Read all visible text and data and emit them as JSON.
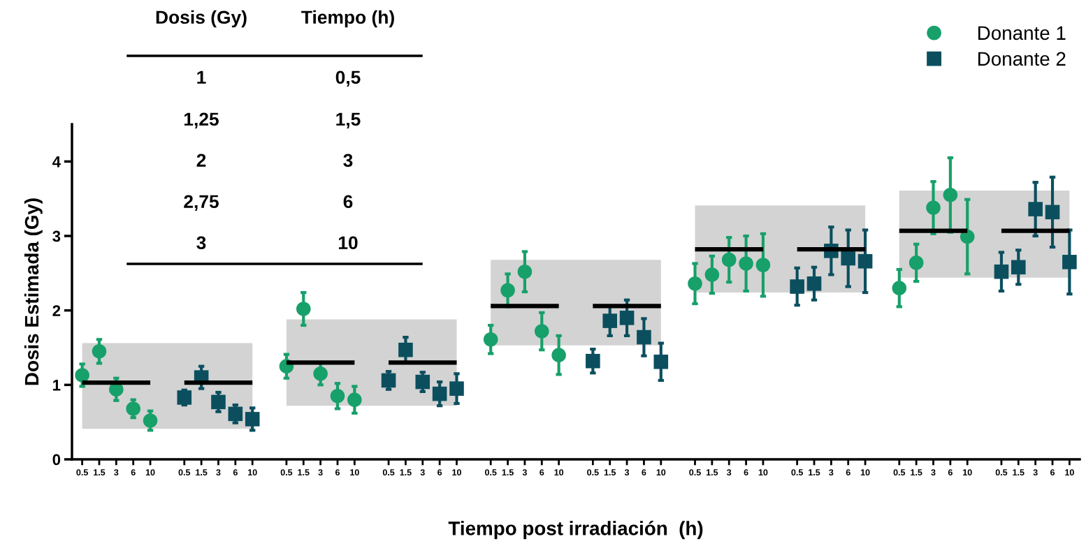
{
  "chart_data": {
    "type": "scatter",
    "xlabel": "Tiempo post irradiación  (h)",
    "ylabel": "Dosis Estimada (Gy)",
    "categories": [
      "0.5",
      "1.5",
      "3",
      "6",
      "10",
      null,
      "0.5",
      "1.5",
      "3",
      "6",
      "10",
      null,
      "0.5",
      "1.5",
      "3",
      "6",
      "10",
      null,
      "0.5",
      "1.5",
      "3",
      "6",
      "10",
      null,
      "0.5",
      "1.5",
      "3",
      "6",
      "10",
      null,
      "0.5",
      "1.5",
      "3",
      "6",
      "10",
      null,
      "0.5",
      "1.5",
      "3",
      "6",
      "10",
      null,
      "0.5",
      "1.5",
      "3",
      "6",
      "10",
      null,
      "0.5",
      "1.5",
      "3",
      "6",
      "10",
      null,
      "0.5",
      "1.5",
      "3",
      "6",
      "10"
    ],
    "ylim": [
      0,
      4.5
    ],
    "yticks": [
      0,
      1,
      2,
      3,
      4
    ],
    "legend": "top right",
    "grid": false,
    "annotations": [
      "Dosis (Gy)",
      "Tiempo (h)",
      "1",
      "0,5",
      "1,25",
      "1,5",
      "2",
      "3",
      "2,75",
      "6",
      "3",
      "10"
    ],
    "series": [
      {
        "type": "line",
        "color": "#000000",
        "upper": [
          1.56,
          1.56,
          1.56,
          1.56,
          1.56,
          1.56,
          1.56,
          1.56,
          1.56,
          1.56,
          1.56,
          null,
          1.88,
          1.88,
          1.88,
          1.88,
          1.88,
          1.88,
          1.88,
          1.88,
          1.88,
          1.88,
          1.88,
          null,
          2.68,
          2.68,
          2.68,
          2.68,
          2.68,
          2.68,
          2.68,
          2.68,
          2.68,
          2.68,
          2.68,
          null,
          3.41,
          3.41,
          3.41,
          3.41,
          3.41,
          3.41,
          3.41,
          3.41,
          3.41,
          3.41,
          3.41,
          null,
          3.61,
          3.61,
          3.61,
          3.61,
          3.61,
          3.61,
          3.61,
          3.61,
          3.61,
          3.61,
          3.61
        ],
        "lower": [
          0.41,
          0.41,
          0.41,
          0.41,
          0.41,
          0.41,
          0.41,
          0.41,
          0.41,
          0.41,
          0.41,
          null,
          0.72,
          0.72,
          0.72,
          0.72,
          0.72,
          0.72,
          0.72,
          0.72,
          0.72,
          0.72,
          0.72,
          null,
          1.53,
          1.53,
          1.53,
          1.53,
          1.53,
          1.53,
          1.53,
          1.53,
          1.53,
          1.53,
          1.53,
          null,
          2.24,
          2.24,
          2.24,
          2.24,
          2.24,
          2.24,
          2.24,
          2.24,
          2.24,
          2.24,
          2.24,
          null,
          2.44,
          2.44,
          2.44,
          2.44,
          2.44,
          2.44,
          2.44,
          2.44,
          2.44,
          2.44,
          2.44
        ],
        "values": [
          1.03,
          1.03,
          1.03,
          1.03,
          1.03,
          null,
          1.03,
          1.03,
          1.03,
          1.03,
          1.03,
          null,
          1.3,
          1.3,
          1.3,
          1.3,
          1.3,
          null,
          1.3,
          1.3,
          1.3,
          1.3,
          1.3,
          null,
          2.06,
          2.06,
          2.06,
          2.06,
          2.06,
          null,
          2.06,
          2.06,
          2.06,
          2.06,
          2.06,
          null,
          2.82,
          2.82,
          2.82,
          2.82,
          2.82,
          null,
          2.82,
          2.82,
          2.82,
          2.82,
          2.82,
          null,
          3.07,
          3.07,
          3.07,
          3.07,
          3.07,
          null,
          3.07,
          3.07,
          3.07,
          3.07,
          3.07
        ]
      },
      {
        "name": "Donante 1",
        "color": "#17a06a",
        "marker": "circle",
        "values": [
          1.13,
          1.45,
          0.94,
          0.68,
          0.52,
          null,
          null,
          null,
          null,
          null,
          null,
          null,
          1.25,
          2.02,
          1.15,
          0.85,
          0.8,
          null,
          null,
          null,
          null,
          null,
          null,
          null,
          1.61,
          2.27,
          2.52,
          1.72,
          1.4,
          null,
          null,
          null,
          null,
          null,
          null,
          null,
          2.36,
          2.48,
          2.68,
          2.63,
          2.61,
          null,
          null,
          null,
          null,
          null,
          null,
          null,
          2.3,
          2.64,
          3.38,
          3.55,
          2.99,
          null,
          null,
          null,
          null,
          null,
          null
        ],
        "errors": [
          0.15,
          0.16,
          0.15,
          0.12,
          0.13,
          null,
          null,
          null,
          null,
          null,
          null,
          null,
          0.16,
          0.22,
          0.15,
          0.17,
          0.18,
          null,
          null,
          null,
          null,
          null,
          null,
          null,
          0.19,
          0.22,
          0.27,
          0.25,
          0.26,
          null,
          null,
          null,
          null,
          null,
          null,
          null,
          0.27,
          0.25,
          0.3,
          0.37,
          0.42,
          null,
          null,
          null,
          null,
          null,
          null,
          null,
          0.25,
          0.25,
          0.35,
          0.5,
          0.5,
          null,
          null,
          null,
          null,
          null,
          null
        ]
      },
      {
        "name": "Donante 2",
        "color": "#0b4f5f",
        "marker": "square",
        "values": [
          null,
          null,
          null,
          null,
          null,
          null,
          0.83,
          1.1,
          0.77,
          0.61,
          0.54,
          null,
          null,
          null,
          null,
          null,
          null,
          null,
          1.06,
          1.47,
          1.04,
          0.88,
          0.95,
          null,
          null,
          null,
          null,
          null,
          null,
          null,
          1.32,
          1.86,
          1.9,
          1.64,
          1.31,
          null,
          null,
          null,
          null,
          null,
          null,
          null,
          2.32,
          2.36,
          2.8,
          2.7,
          2.66,
          null,
          null,
          null,
          null,
          null,
          null,
          null,
          2.52,
          2.58,
          3.36,
          3.32,
          2.65
        ],
        "errors": [
          null,
          null,
          null,
          null,
          null,
          null,
          0.1,
          0.15,
          0.13,
          0.12,
          0.15,
          null,
          null,
          null,
          null,
          null,
          null,
          null,
          0.12,
          0.17,
          0.13,
          0.16,
          0.2,
          null,
          null,
          null,
          null,
          null,
          null,
          null,
          0.16,
          0.2,
          0.24,
          0.25,
          0.25,
          null,
          null,
          null,
          null,
          null,
          null,
          null,
          0.25,
          0.22,
          0.32,
          0.38,
          0.42,
          null,
          null,
          null,
          null,
          null,
          null,
          null,
          0.26,
          0.23,
          0.36,
          0.47,
          0.43
        ]
      }
    ]
  }
}
